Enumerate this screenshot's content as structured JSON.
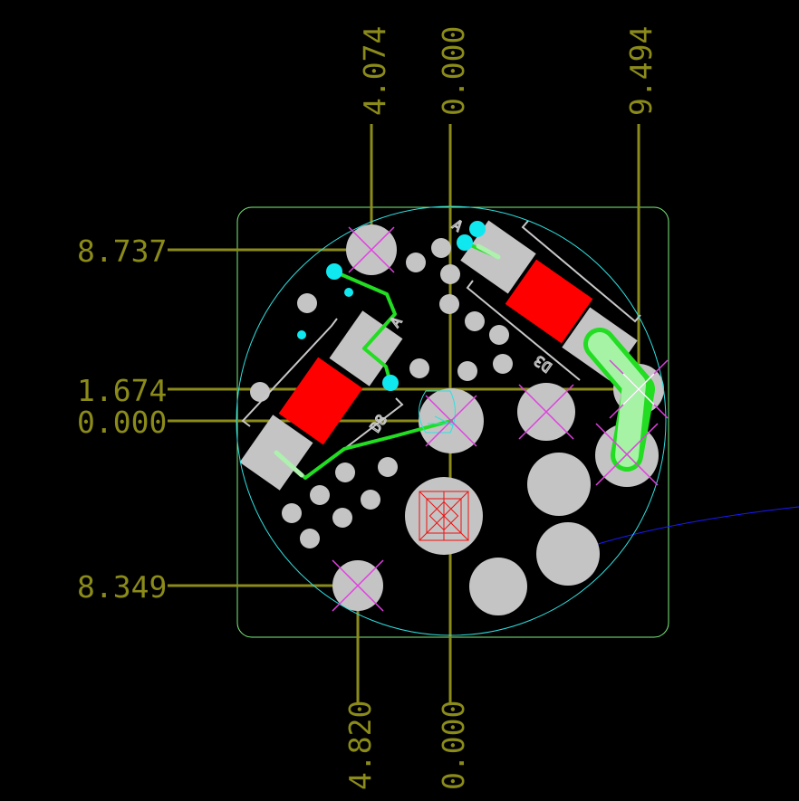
{
  "dimensions": {
    "top": [
      "4.074",
      "0.000",
      "9.494"
    ],
    "left": [
      "8.737",
      "1.674",
      "0.000",
      "8.349"
    ],
    "bottom": [
      "4.820",
      "0.000"
    ]
  },
  "silkscreen": {
    "d1_mark": "A",
    "d1_ref": "D3",
    "d2_mark": "A",
    "d2_ref": "D8"
  },
  "colors": {
    "background": "#000000",
    "dimension": "#8b8b1a",
    "board_outline": "#7cf07c",
    "circle_outline": "#2fe0e0",
    "pad": "#c4c4c4",
    "drill_cross": "#e040e0",
    "smd_red": "#ff0000",
    "trace": "#22dd22",
    "via": "#10e8f0",
    "ratsnest": "#1a1aff"
  }
}
